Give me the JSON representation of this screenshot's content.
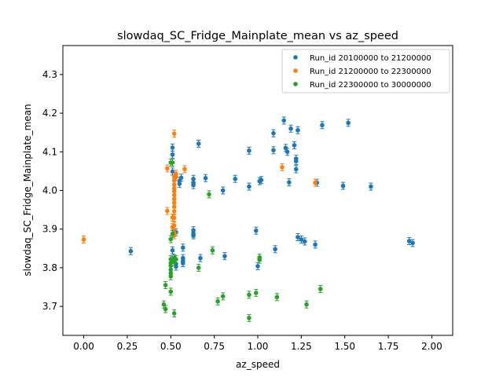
{
  "chart_data": {
    "type": "scatter",
    "title": "slowdaq_SC_Fridge_Mainplate_mean vs az_speed",
    "xlabel": "az_speed",
    "ylabel": "slowdaq_SC_Fridge_Mainplate_mean",
    "xlim": [
      -0.12,
      2.12
    ],
    "ylim": [
      3.625,
      4.375
    ],
    "xticks": [
      0.0,
      0.25,
      0.5,
      0.75,
      1.0,
      1.25,
      1.5,
      1.75,
      2.0
    ],
    "xtick_labels": [
      "0.00",
      "0.25",
      "0.50",
      "0.75",
      "1.00",
      "1.25",
      "1.50",
      "1.75",
      "2.00"
    ],
    "yticks": [
      3.7,
      3.8,
      3.9,
      4.0,
      4.1,
      4.2,
      4.3
    ],
    "ytick_labels": [
      "3.7",
      "3.8",
      "3.9",
      "4.0",
      "4.1",
      "4.2",
      "4.3"
    ],
    "grid": false,
    "legend_position": "top-right",
    "error_bars": true,
    "series": [
      {
        "name": "Run_id 20100000 to 21200000",
        "color": "#1f77b4",
        "points": [
          [
            0.27,
            3.843
          ],
          [
            0.51,
            4.111
          ],
          [
            0.51,
            4.093
          ],
          [
            0.51,
            4.049
          ],
          [
            0.51,
            3.845
          ],
          [
            0.52,
            3.825
          ],
          [
            0.53,
            3.81
          ],
          [
            0.53,
            3.892
          ],
          [
            0.53,
            3.803
          ],
          [
            0.55,
            4.025
          ],
          [
            0.55,
            4.017
          ],
          [
            0.56,
            4.033
          ],
          [
            0.57,
            3.852
          ],
          [
            0.57,
            3.825
          ],
          [
            0.57,
            3.817
          ],
          [
            0.57,
            3.812
          ],
          [
            0.63,
            4.03
          ],
          [
            0.63,
            4.02
          ],
          [
            0.63,
            4.014
          ],
          [
            0.63,
            3.897
          ],
          [
            0.63,
            3.888
          ],
          [
            0.63,
            3.884
          ],
          [
            0.66,
            4.121
          ],
          [
            0.67,
            3.825
          ],
          [
            0.7,
            4.032
          ],
          [
            0.8,
            4.0
          ],
          [
            0.81,
            3.83
          ],
          [
            0.87,
            4.03
          ],
          [
            0.95,
            4.103
          ],
          [
            0.95,
            4.01
          ],
          [
            0.99,
            3.896
          ],
          [
            1.0,
            3.804
          ],
          [
            1.01,
            4.024
          ],
          [
            1.02,
            4.027
          ],
          [
            1.09,
            4.148
          ],
          [
            1.09,
            4.104
          ],
          [
            1.1,
            3.848
          ],
          [
            1.15,
            4.181
          ],
          [
            1.16,
            4.11
          ],
          [
            1.17,
            4.1
          ],
          [
            1.18,
            4.021
          ],
          [
            1.19,
            4.16
          ],
          [
            1.21,
            4.117
          ],
          [
            1.22,
            4.082
          ],
          [
            1.22,
            4.076
          ],
          [
            1.22,
            4.055
          ],
          [
            1.23,
            4.156
          ],
          [
            1.23,
            3.879
          ],
          [
            1.25,
            3.873
          ],
          [
            1.27,
            3.868
          ],
          [
            1.33,
            3.86
          ],
          [
            1.34,
            4.02
          ],
          [
            1.37,
            4.169
          ],
          [
            1.49,
            4.012
          ],
          [
            1.52,
            4.175
          ],
          [
            1.65,
            4.01
          ],
          [
            1.87,
            3.869
          ],
          [
            1.89,
            3.864
          ]
        ]
      },
      {
        "name": "Run_id 21200000 to 22300000",
        "color": "#ff7f0e",
        "points": [
          [
            0.0,
            3.873
          ],
          [
            0.48,
            4.057
          ],
          [
            0.48,
            3.947
          ],
          [
            0.51,
            3.93
          ],
          [
            0.51,
            3.905
          ],
          [
            0.51,
            3.82
          ],
          [
            0.52,
            4.147
          ],
          [
            0.52,
            4.035
          ],
          [
            0.52,
            4.026
          ],
          [
            0.52,
            4.015
          ],
          [
            0.52,
            4.005
          ],
          [
            0.52,
            3.998
          ],
          [
            0.52,
            3.988
          ],
          [
            0.52,
            3.978
          ],
          [
            0.52,
            3.968
          ],
          [
            0.52,
            3.958
          ],
          [
            0.52,
            3.946
          ],
          [
            0.52,
            3.929
          ],
          [
            0.52,
            3.909
          ],
          [
            0.52,
            3.89
          ],
          [
            0.52,
            3.884
          ],
          [
            0.53,
            4.043
          ],
          [
            0.53,
            4.035
          ],
          [
            0.58,
            4.055
          ],
          [
            1.14,
            4.06
          ],
          [
            1.33,
            4.02
          ]
        ]
      },
      {
        "name": "Run_id 22300000 to 30000000",
        "color": "#2ca02c",
        "points": [
          [
            0.46,
            3.705
          ],
          [
            0.47,
            3.755
          ],
          [
            0.47,
            3.693
          ],
          [
            0.5,
            4.072
          ],
          [
            0.5,
            3.874
          ],
          [
            0.5,
            3.822
          ],
          [
            0.5,
            3.812
          ],
          [
            0.5,
            3.805
          ],
          [
            0.5,
            3.795
          ],
          [
            0.5,
            3.786
          ],
          [
            0.5,
            3.778
          ],
          [
            0.5,
            3.738
          ],
          [
            0.51,
            4.072
          ],
          [
            0.51,
            3.888
          ],
          [
            0.51,
            3.821
          ],
          [
            0.52,
            3.815
          ],
          [
            0.52,
            3.682
          ],
          [
            0.53,
            3.822
          ],
          [
            0.66,
            3.8
          ],
          [
            0.72,
            3.99
          ],
          [
            0.74,
            3.845
          ],
          [
            0.77,
            3.713
          ],
          [
            0.8,
            3.726
          ],
          [
            0.95,
            3.73
          ],
          [
            0.95,
            3.67
          ],
          [
            0.99,
            3.735
          ],
          [
            1.01,
            3.826
          ],
          [
            1.01,
            3.821
          ],
          [
            1.11,
            3.724
          ],
          [
            1.28,
            3.705
          ],
          [
            1.36,
            3.745
          ]
        ]
      }
    ]
  }
}
